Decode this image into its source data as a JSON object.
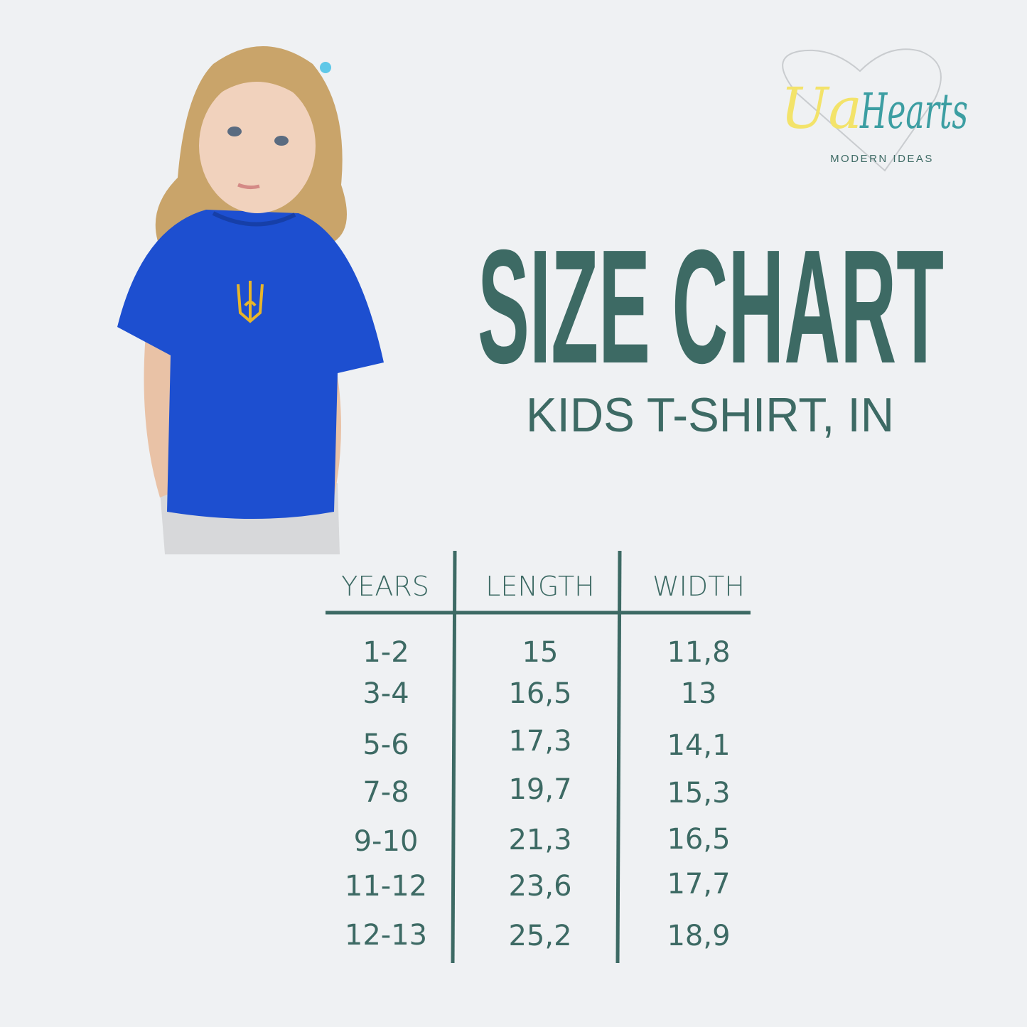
{
  "brand": {
    "logo_text_left": "Ua",
    "logo_text_right": "Hearts",
    "tagline": "MODERN IDEAS",
    "colors": {
      "yellow": "#f3e36a",
      "teal": "#3c9ea2",
      "heart_outline": "#c9cccf"
    }
  },
  "title": "SIZE CHART",
  "subtitle": "KIDS T-SHIRT, IN",
  "colors": {
    "background": "#eff1f3",
    "text": "#3d6a64",
    "shirt": "#1d4fd0",
    "emblem": "#e7b52a"
  },
  "photo": {
    "subject": "child wearing blue t-shirt with yellow trident emblem"
  },
  "table": {
    "headers": [
      "YEARS",
      "LENGTH",
      "WIDTH"
    ],
    "rows": [
      [
        "1-2",
        "15",
        "11,8"
      ],
      [
        "3-4",
        "16,5",
        "13"
      ],
      [
        "5-6",
        "17,3",
        "14,1"
      ],
      [
        "7-8",
        "19,7",
        "15,3"
      ],
      [
        "9-10",
        "21,3",
        "16,5"
      ],
      [
        "11-12",
        "23,6",
        "17,7"
      ],
      [
        "12-13",
        "25,2",
        "18,9"
      ]
    ]
  }
}
